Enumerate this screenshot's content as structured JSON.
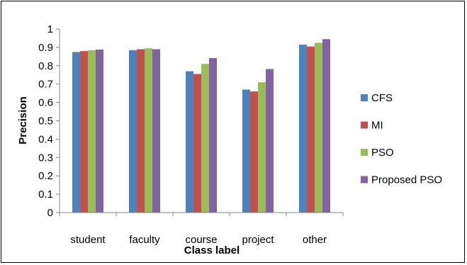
{
  "chart_data": {
    "type": "bar",
    "categories": [
      "student",
      "faculty",
      "course",
      "project",
      "other"
    ],
    "series": [
      {
        "name": "CFS",
        "color": "#4F81BD",
        "values": [
          0.875,
          0.885,
          0.77,
          0.67,
          0.915
        ]
      },
      {
        "name": "MI",
        "color": "#C0504D",
        "values": [
          0.88,
          0.89,
          0.755,
          0.66,
          0.905
        ]
      },
      {
        "name": "PSO",
        "color": "#9BBB59",
        "values": [
          0.885,
          0.895,
          0.81,
          0.71,
          0.925
        ]
      },
      {
        "name": "Proposed PSO",
        "color": "#8064A2",
        "values": [
          0.888,
          0.89,
          0.842,
          0.782,
          0.945
        ]
      }
    ],
    "xlabel": "Class label",
    "ylabel": "Precision",
    "ylim": [
      0,
      1
    ],
    "yticks": [
      "0",
      "0.1",
      "0.2",
      "0.3",
      "0.4",
      "0.5",
      "0.6",
      "0.7",
      "0.8",
      "0.9",
      "1"
    ],
    "grid": false,
    "legend_position": "right"
  }
}
